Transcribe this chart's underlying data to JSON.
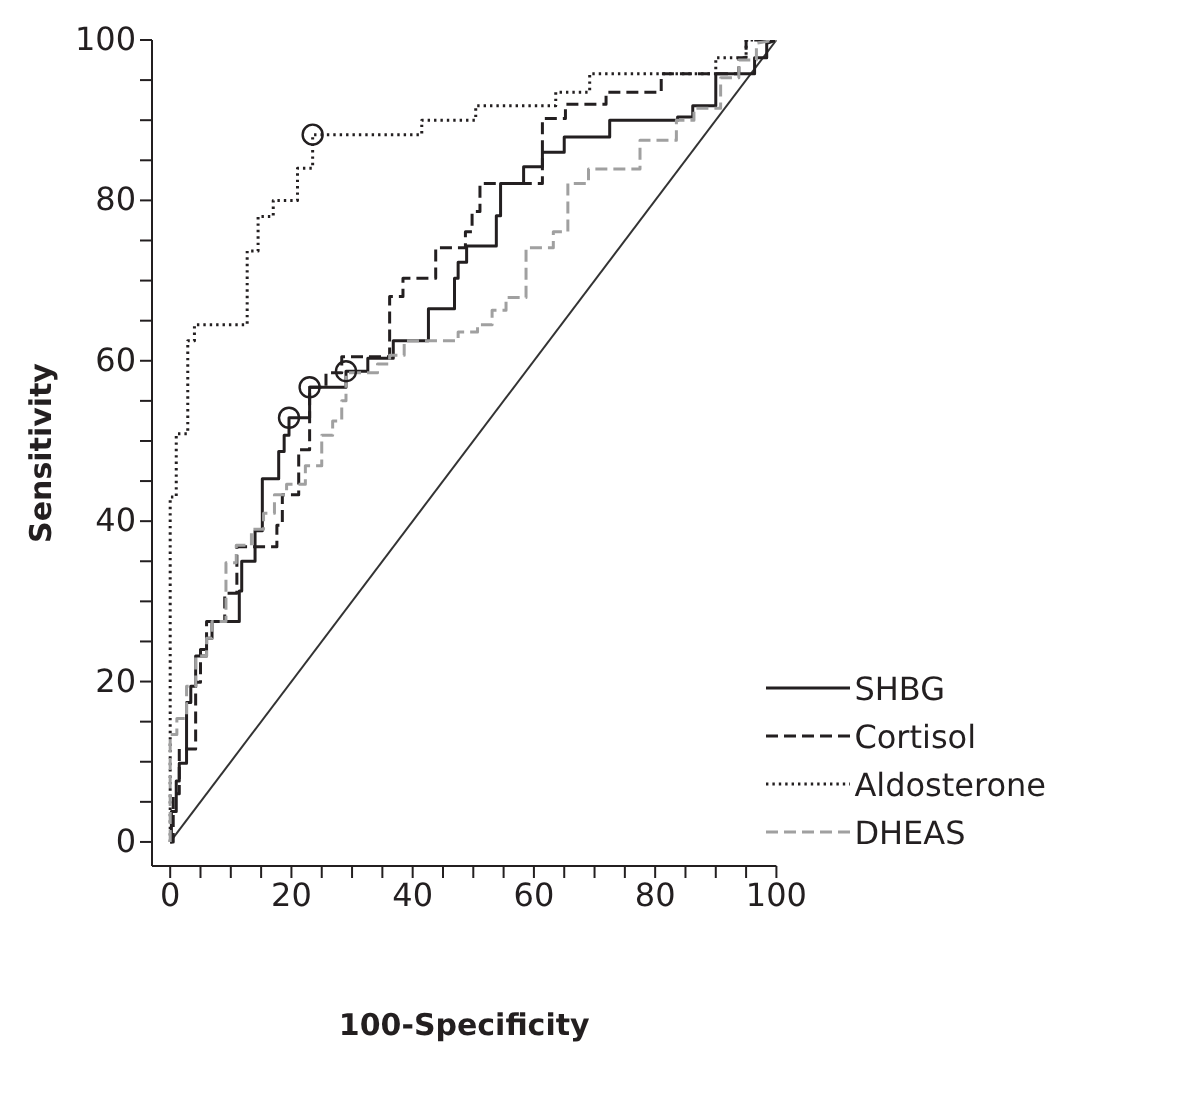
{
  "chart_data": {
    "type": "line",
    "xlabel": "100-Specificity",
    "ylabel": "Sensitivity",
    "xlim": [
      -3,
      100
    ],
    "ylim": [
      -3,
      100
    ],
    "xticks": [
      0,
      {
        "value": 5,
        "label": null
      },
      {
        "value": 10,
        "label": null
      },
      {
        "value": 15,
        "label": null
      },
      20,
      {
        "value": 25,
        "label": null
      },
      {
        "value": 30,
        "label": null
      },
      {
        "value": 35,
        "label": null
      },
      40,
      {
        "value": 45,
        "label": null
      },
      {
        "value": 50,
        "label": null
      },
      {
        "value": 55,
        "label": null
      },
      60,
      {
        "value": 65,
        "label": null
      },
      {
        "value": 70,
        "label": null
      },
      {
        "value": 75,
        "label": null
      },
      80,
      {
        "value": 85,
        "label": null
      },
      {
        "value": 90,
        "label": null
      },
      {
        "value": 95,
        "label": null
      },
      100
    ],
    "yticks": [
      0,
      {
        "value": 5,
        "label": null
      },
      {
        "value": 10,
        "label": null
      },
      {
        "value": 15,
        "label": null
      },
      20,
      {
        "value": 25,
        "label": null
      },
      {
        "value": 30,
        "label": null
      },
      {
        "value": 35,
        "label": null
      },
      40,
      {
        "value": 45,
        "label": null
      },
      {
        "value": 50,
        "label": null
      },
      {
        "value": 55,
        "label": null
      },
      60,
      {
        "value": 65,
        "label": null
      },
      {
        "value": 70,
        "label": null
      },
      {
        "value": 75,
        "label": null
      },
      80,
      {
        "value": 85,
        "label": null
      },
      {
        "value": 90,
        "label": null
      },
      {
        "value": 95,
        "label": null
      },
      100
    ],
    "grid": false,
    "legend": "bottom right",
    "marker": "none",
    "series": [
      {
        "type": "line",
        "color": "#333333",
        "line_style": "solid",
        "x": [
          0,
          0,
          100
        ],
        "values": [
          0,
          0,
          100
        ]
      },
      {
        "name": "SHBG",
        "color": "#231f20",
        "line_style": "solid",
        "x": [
          0,
          0.2,
          0.2,
          1,
          1,
          1.5,
          1.5,
          2.7,
          2.7,
          3.4,
          3.4,
          4.2,
          4.2,
          6,
          6,
          6.9,
          6.9,
          11.4,
          11.4,
          11.8,
          11.8,
          14,
          14,
          15.2,
          15.2,
          17.9,
          17.9,
          18.8,
          18.8,
          19.6,
          19.6,
          23,
          23,
          29,
          29,
          32.6,
          32.6,
          36.8,
          36.8,
          42.6,
          42.6,
          46.9,
          46.9,
          47.5,
          47.5,
          48.9,
          48.9,
          53.8,
          53.8,
          54.5,
          54.5,
          58.3,
          58.3,
          61.4,
          61.4,
          65,
          65,
          72.5,
          72.5,
          83.7,
          83.7,
          86.2,
          86.2,
          90,
          90,
          96.4,
          96.4,
          98.4,
          98.4,
          100
        ],
        "values": [
          0,
          0,
          3.8,
          3.8,
          7.6,
          7.6,
          9.8,
          9.8,
          17.4,
          17.4,
          19.4,
          19.4,
          23.2,
          23.2,
          25.4,
          25.4,
          27.5,
          27.5,
          31.3,
          31.3,
          35,
          35,
          38.8,
          38.8,
          45.3,
          45.3,
          48.7,
          48.7,
          50.7,
          50.7,
          52.9,
          52.9,
          56.7,
          56.7,
          58.7,
          58.7,
          60.3,
          60.3,
          62.5,
          62.5,
          66.5,
          66.5,
          70.3,
          70.3,
          72.3,
          72.3,
          74.3,
          74.3,
          78.1,
          78.1,
          82.1,
          82.1,
          84.2,
          84.2,
          86,
          86,
          87.9,
          87.9,
          90,
          90,
          90.4,
          90.4,
          91.8,
          91.8,
          95.8,
          95.8,
          97.8,
          97.8,
          99.6,
          100
        ]
      },
      {
        "name": "Cortisol",
        "color": "#231f20",
        "line_style": "dashed",
        "x": [
          0,
          0.5,
          0.5,
          1.5,
          1.5,
          4.2,
          4.2,
          5,
          5,
          6,
          6,
          9,
          9,
          11,
          11,
          14.7,
          14.7,
          17.6,
          17.6,
          18.5,
          18.5,
          21.2,
          21.2,
          23,
          23,
          25.7,
          25.7,
          28.3,
          28.3,
          36.2,
          36.2,
          38.4,
          38.4,
          43.8,
          43.8,
          48.7,
          48.7,
          49.8,
          49.8,
          51.1,
          51.1,
          61.4,
          61.4,
          65.2,
          65.2,
          71.9,
          71.9,
          81,
          81,
          93.8,
          93.8,
          95,
          95,
          100
        ],
        "values": [
          0,
          0,
          6,
          6,
          11.6,
          11.6,
          19.9,
          19.9,
          24,
          24,
          27.5,
          27.5,
          31,
          31,
          36.8,
          36.8,
          36.8,
          36.8,
          39.5,
          39.5,
          43.3,
          43.3,
          48.9,
          48.9,
          56.7,
          56.7,
          58.5,
          58.5,
          60.5,
          60.5,
          68,
          68,
          70.3,
          70.3,
          74.1,
          74.1,
          76.1,
          76.1,
          78.6,
          78.6,
          82.1,
          82.1,
          90.2,
          90.2,
          92,
          92,
          93.5,
          93.5,
          95.8,
          95.8,
          97.8,
          97.8,
          100,
          100
        ]
      },
      {
        "name": "Aldosterone",
        "color": "#231f20",
        "line_style": "dotted",
        "x": [
          0,
          0,
          1,
          1,
          2.9,
          2.9,
          4,
          4,
          12.7,
          12.7,
          14.5,
          14.5,
          17,
          17,
          21,
          21,
          23.5,
          23.5,
          41.5,
          41.5,
          50.4,
          50.4,
          63.6,
          63.6,
          69.2,
          69.2,
          90,
          90,
          95,
          95,
          100
        ],
        "values": [
          0,
          43,
          43,
          50.9,
          50.9,
          62.5,
          62.5,
          64.5,
          64.5,
          73.7,
          73.7,
          78,
          78,
          80,
          80,
          84,
          84,
          88.2,
          88.2,
          90,
          90,
          91.8,
          91.8,
          93.5,
          93.5,
          95.8,
          95.8,
          97.8,
          97.8,
          100,
          100
        ]
      },
      {
        "name": "DHEAS",
        "color": "#a0a0a0",
        "line_style": "dashed",
        "x": [
          0,
          0,
          1.1,
          1.1,
          2.7,
          2.7,
          4.2,
          4.2,
          6,
          6,
          6.9,
          6.9,
          9.2,
          9.2,
          10.9,
          10.9,
          13.4,
          13.4,
          15.4,
          15.4,
          17.2,
          17.2,
          19.2,
          19.2,
          22.3,
          22.3,
          25,
          25,
          26.8,
          26.8,
          28.3,
          28.3,
          29,
          29,
          34.2,
          34.2,
          36.2,
          36.2,
          38.6,
          38.6,
          47.5,
          47.5,
          50.7,
          50.7,
          53.1,
          53.1,
          55.4,
          55.4,
          58.7,
          58.7,
          63.2,
          63.2,
          65.6,
          65.6,
          69,
          69,
          77.5,
          77.5,
          83.5,
          83.5,
          86.4,
          86.4,
          90.8,
          90.8,
          93.8,
          93.8,
          96.7,
          96.7,
          100
        ],
        "values": [
          0,
          13.4,
          13.4,
          15.4,
          15.4,
          19.4,
          19.4,
          23.2,
          23.2,
          25.4,
          25.4,
          27.5,
          27.5,
          34.8,
          34.8,
          37,
          37,
          39,
          39,
          41,
          41,
          43.3,
          43.3,
          44.6,
          44.6,
          46.9,
          46.9,
          50.7,
          50.7,
          52.5,
          52.5,
          55,
          55,
          58.5,
          58.5,
          59.6,
          59.6,
          60.7,
          60.7,
          62.5,
          62.5,
          63.6,
          63.6,
          64.5,
          64.5,
          66.3,
          66.3,
          67.9,
          67.9,
          74.1,
          74.1,
          76.1,
          76.1,
          82.1,
          82.1,
          83.9,
          83.9,
          87.5,
          87.5,
          90,
          90,
          91.5,
          91.5,
          95.3,
          95.3,
          97.5,
          97.5,
          99.6,
          100
        ]
      },
      {
        "type": "scatter",
        "color": "#231f20",
        "marker": "circle",
        "x": [
          19.6,
          23,
          23.5,
          29
        ],
        "values": [
          52.9,
          56.7,
          88.2,
          58.7
        ]
      }
    ]
  }
}
